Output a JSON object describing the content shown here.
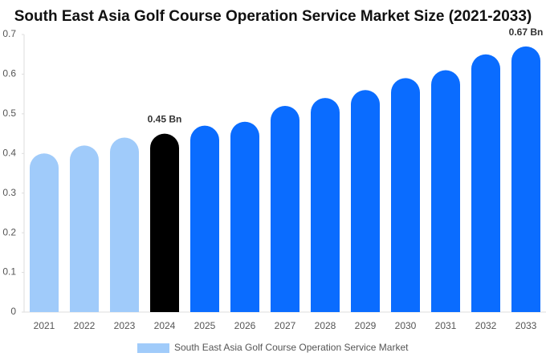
{
  "chart_data": {
    "type": "bar",
    "title": "South East Asia Golf Course Operation Service Market Size (2021-2033)",
    "categories": [
      "2021",
      "2022",
      "2023",
      "2024",
      "2025",
      "2026",
      "2027",
      "2028",
      "2029",
      "2030",
      "2031",
      "2032",
      "2033"
    ],
    "series": [
      {
        "name": "South East Asia Golf Course Operation Service Market",
        "color": "#a0cbfa",
        "colors": [
          "#a0cbfa",
          "#a0cbfa",
          "#a0cbfa",
          "#000000",
          "#0a6cff",
          "#0a6cff",
          "#0a6cff",
          "#0a6cff",
          "#0a6cff",
          "#0a6cff",
          "#0a6cff",
          "#0a6cff",
          "#0a6cff"
        ],
        "values": [
          0.4,
          0.42,
          0.44,
          0.45,
          0.47,
          0.48,
          0.52,
          0.54,
          0.56,
          0.59,
          0.61,
          0.65,
          0.67
        ],
        "value_labels": [
          null,
          null,
          null,
          "0.45 Bn",
          null,
          null,
          null,
          null,
          null,
          null,
          null,
          null,
          "0.67 Bn"
        ]
      }
    ],
    "ylim": [
      0,
      0.7
    ],
    "yticks": [
      0,
      0.1,
      0.2,
      0.3,
      0.4,
      0.5,
      0.6,
      0.7
    ]
  }
}
